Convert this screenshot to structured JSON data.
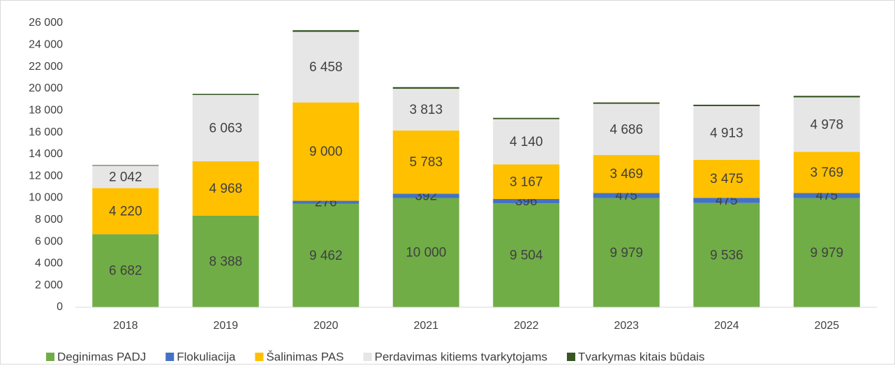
{
  "chart_data": {
    "type": "stacked_bar",
    "categories": [
      "2018",
      "2019",
      "2020",
      "2021",
      "2022",
      "2023",
      "2024",
      "2025"
    ],
    "series": [
      {
        "name": "Deginimas PADJ",
        "color": "#70ad47",
        "values": [
          6682,
          8388,
          9462,
          10000,
          9504,
          9979,
          9536,
          9979
        ],
        "value_labels": [
          "6 682",
          "8 388",
          "9 462",
          "10 000",
          "9 504",
          "9 979",
          "9 536",
          "9 979"
        ]
      },
      {
        "name": "Flokuliacija",
        "color": "#4472c4",
        "values": [
          null,
          null,
          276,
          392,
          396,
          475,
          475,
          475
        ],
        "value_labels": [
          null,
          null,
          "276",
          "392",
          "396",
          "475",
          "475",
          "475"
        ]
      },
      {
        "name": "Šalinimas PAS",
        "color": "#ffc000",
        "values": [
          4220,
          4968,
          9000,
          5783,
          3167,
          3469,
          3475,
          3769
        ],
        "value_labels": [
          "4 220",
          "4 968",
          "9 000",
          "5 783",
          "3 167",
          "3 469",
          "3 475",
          "3 769"
        ]
      },
      {
        "name": "Perdavimas kitiems tvarkytojams",
        "color": "#e7e6e6",
        "values": [
          2042,
          6063,
          6458,
          3813,
          4140,
          4686,
          4913,
          4978
        ],
        "value_labels": [
          "2 042",
          "6 063",
          "6 458",
          "3 813",
          "4 140",
          "4 686",
          "4 913",
          "4 978"
        ]
      },
      {
        "name": "Tvarkymas kitais būdais",
        "color": "#375623",
        "values": [
          60,
          100,
          150,
          150,
          120,
          130,
          130,
          140
        ]
      }
    ],
    "ylim": [
      0,
      26000
    ],
    "yticks": [
      0,
      {
        "value": 2000,
        "label": "2 000"
      },
      {
        "value": 4000,
        "label": "4 000"
      },
      {
        "value": 6000,
        "label": "6 000"
      },
      {
        "value": 8000,
        "label": "8 000"
      },
      {
        "value": 10000,
        "label": "10 000"
      },
      {
        "value": 12000,
        "label": "12 000"
      },
      {
        "value": 14000,
        "label": "14 000"
      },
      {
        "value": 16000,
        "label": "16 000"
      },
      {
        "value": 18000,
        "label": "18 000"
      },
      {
        "value": 20000,
        "label": "20 000"
      },
      {
        "value": 22000,
        "label": "22 000"
      },
      {
        "value": 24000,
        "label": "24 000"
      },
      {
        "value": 26000,
        "label": "26 000"
      }
    ],
    "legend": "bottom"
  }
}
